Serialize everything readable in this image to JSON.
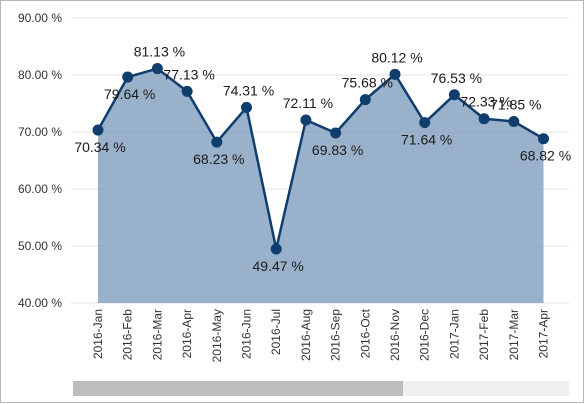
{
  "chart_data": {
    "type": "area",
    "categories": [
      "2016-Jan",
      "2016-Feb",
      "2016-Mar",
      "2016-Apr",
      "2016-May",
      "2016-Jun",
      "2016-Jul",
      "2016-Aug",
      "2016-Sep",
      "2016-Oct",
      "2016-Nov",
      "2016-Dec",
      "2017-Jan",
      "2017-Feb",
      "2017-Mar",
      "2017-Apr"
    ],
    "values": [
      70.34,
      79.64,
      81.13,
      77.13,
      68.23,
      74.31,
      49.47,
      72.11,
      69.83,
      75.68,
      80.12,
      71.64,
      76.53,
      72.33,
      71.85,
      68.82
    ],
    "value_labels": [
      "70.34 %",
      "79.64 %",
      "81.13 %",
      "77.13 %",
      "68.23 %",
      "74.31 %",
      "49.47 %",
      "72.11 %",
      "69.83 %",
      "75.68 %",
      "80.12 %",
      "71.64 %",
      "76.53 %",
      "72.33 %",
      "71.85 %",
      "68.82 %"
    ],
    "yticks": [
      40,
      50,
      60,
      70,
      80,
      90
    ],
    "ytick_labels": [
      "40.00 %",
      "50.00 %",
      "60.00 %",
      "70.00 %",
      "80.00 %",
      "90.00 %"
    ],
    "ylim": [
      40,
      90
    ],
    "title": "",
    "xlabel": "",
    "ylabel": "",
    "grid": true,
    "colors": {
      "line": "#0f3d6e",
      "fill": "#7f9ebd",
      "marker": "#0f3d6e",
      "grid": "#e3e3e3"
    }
  },
  "scrollbar": {
    "position": 0,
    "visible_fraction": 0.665
  }
}
